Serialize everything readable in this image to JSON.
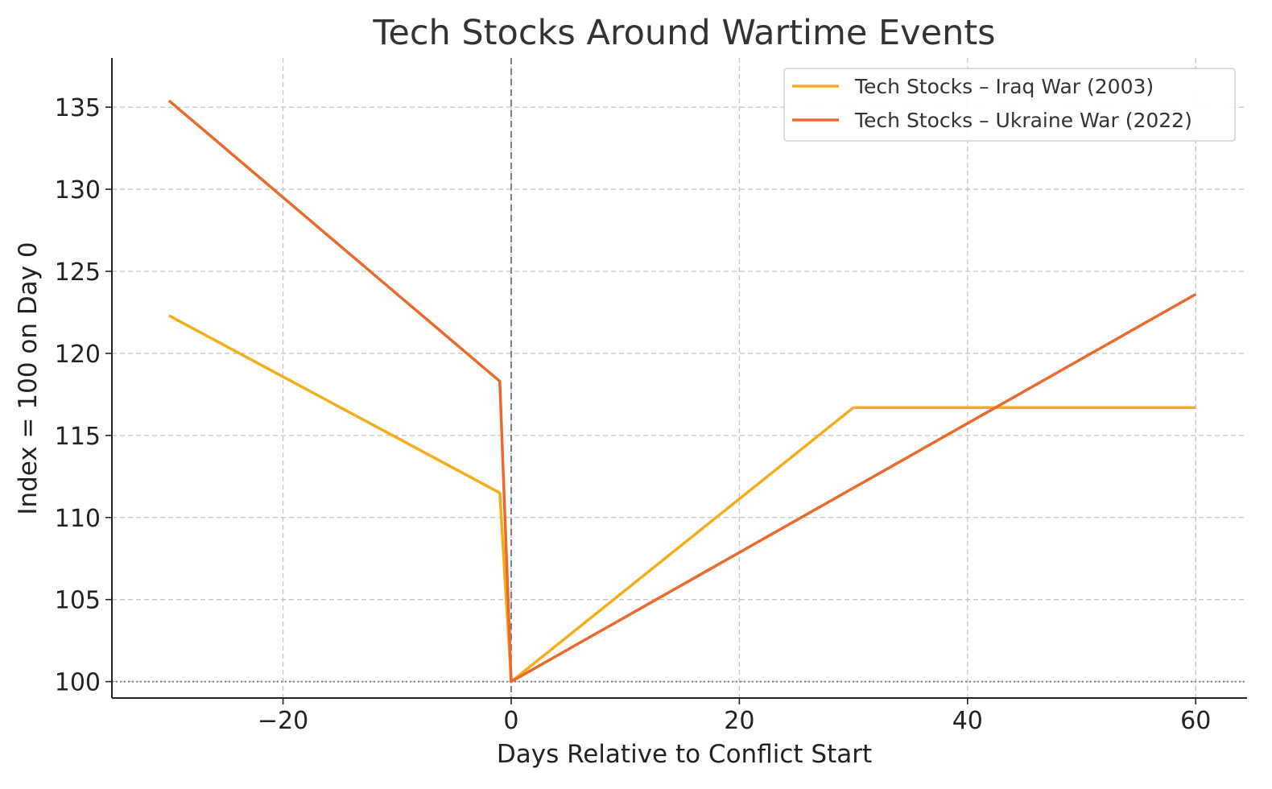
{
  "chart_data": {
    "type": "line",
    "title": "Tech Stocks Around Wartime Events",
    "xlabel": "Days Relative to Conflict Start",
    "ylabel": "Index = 100 on Day 0",
    "xlim": [
      -35,
      64.5
    ],
    "ylim": [
      99,
      138
    ],
    "xticks": [
      -20,
      0,
      20,
      40,
      60
    ],
    "xtick_labels": [
      "−20",
      "0",
      "20",
      "40",
      "60"
    ],
    "yticks": [
      100,
      105,
      110,
      115,
      120,
      125,
      130,
      135
    ],
    "ytick_labels": [
      "100",
      "105",
      "110",
      "115",
      "120",
      "125",
      "130",
      "135"
    ],
    "grid": true,
    "legend_position": "top-right",
    "reference_lines": [
      {
        "axis": "x",
        "value": 0,
        "style": "dashed",
        "color": "#7f7f7f"
      },
      {
        "axis": "y",
        "value": 100,
        "style": "dotted",
        "color": "#7f7f7f"
      }
    ],
    "series": [
      {
        "name": "Tech Stocks – Iraq War (2003)",
        "color": "#f7ad19",
        "x": [
          -30,
          -1,
          0,
          30,
          60
        ],
        "y": [
          122.3,
          111.5,
          100,
          116.7,
          116.7
        ]
      },
      {
        "name": "Tech Stocks – Ukraine War (2022)",
        "color": "#eb6a2b",
        "x": [
          -30,
          -1,
          0,
          60
        ],
        "y": [
          135.4,
          118.3,
          100,
          123.6
        ]
      }
    ]
  }
}
